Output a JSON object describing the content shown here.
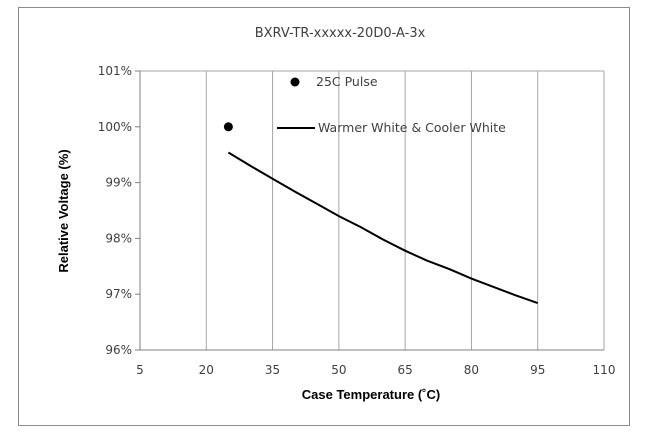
{
  "chart_data": {
    "type": "line",
    "title": "BXRV-TR-xxxxx-20D0-A-3x",
    "xlabel": "Case Temperature (˚C)",
    "ylabel": "Relative Voltage (%)",
    "xlim": [
      5,
      110
    ],
    "ylim": [
      96,
      101
    ],
    "x_ticks": [
      "5",
      "20",
      "35",
      "50",
      "65",
      "80",
      "95",
      "110"
    ],
    "y_ticks": [
      "96%",
      "97%",
      "98%",
      "99%",
      "100%",
      "101%"
    ],
    "grid": "vertical",
    "legend_position": "top-center",
    "series": [
      {
        "name": "25C Pulse",
        "kind": "scatter",
        "color": "#000000",
        "points": [
          [
            25,
            100.0
          ]
        ]
      },
      {
        "name": "Warmer White & Cooler White",
        "kind": "line",
        "color": "#000000",
        "points": [
          [
            25,
            99.54
          ],
          [
            30,
            99.3
          ],
          [
            35,
            99.07
          ],
          [
            40,
            98.84
          ],
          [
            45,
            98.62
          ],
          [
            50,
            98.4
          ],
          [
            55,
            98.2
          ],
          [
            60,
            97.98
          ],
          [
            65,
            97.78
          ],
          [
            70,
            97.6
          ],
          [
            75,
            97.45
          ],
          [
            80,
            97.28
          ],
          [
            85,
            97.13
          ],
          [
            90,
            96.98
          ],
          [
            95,
            96.84
          ]
        ]
      }
    ]
  }
}
